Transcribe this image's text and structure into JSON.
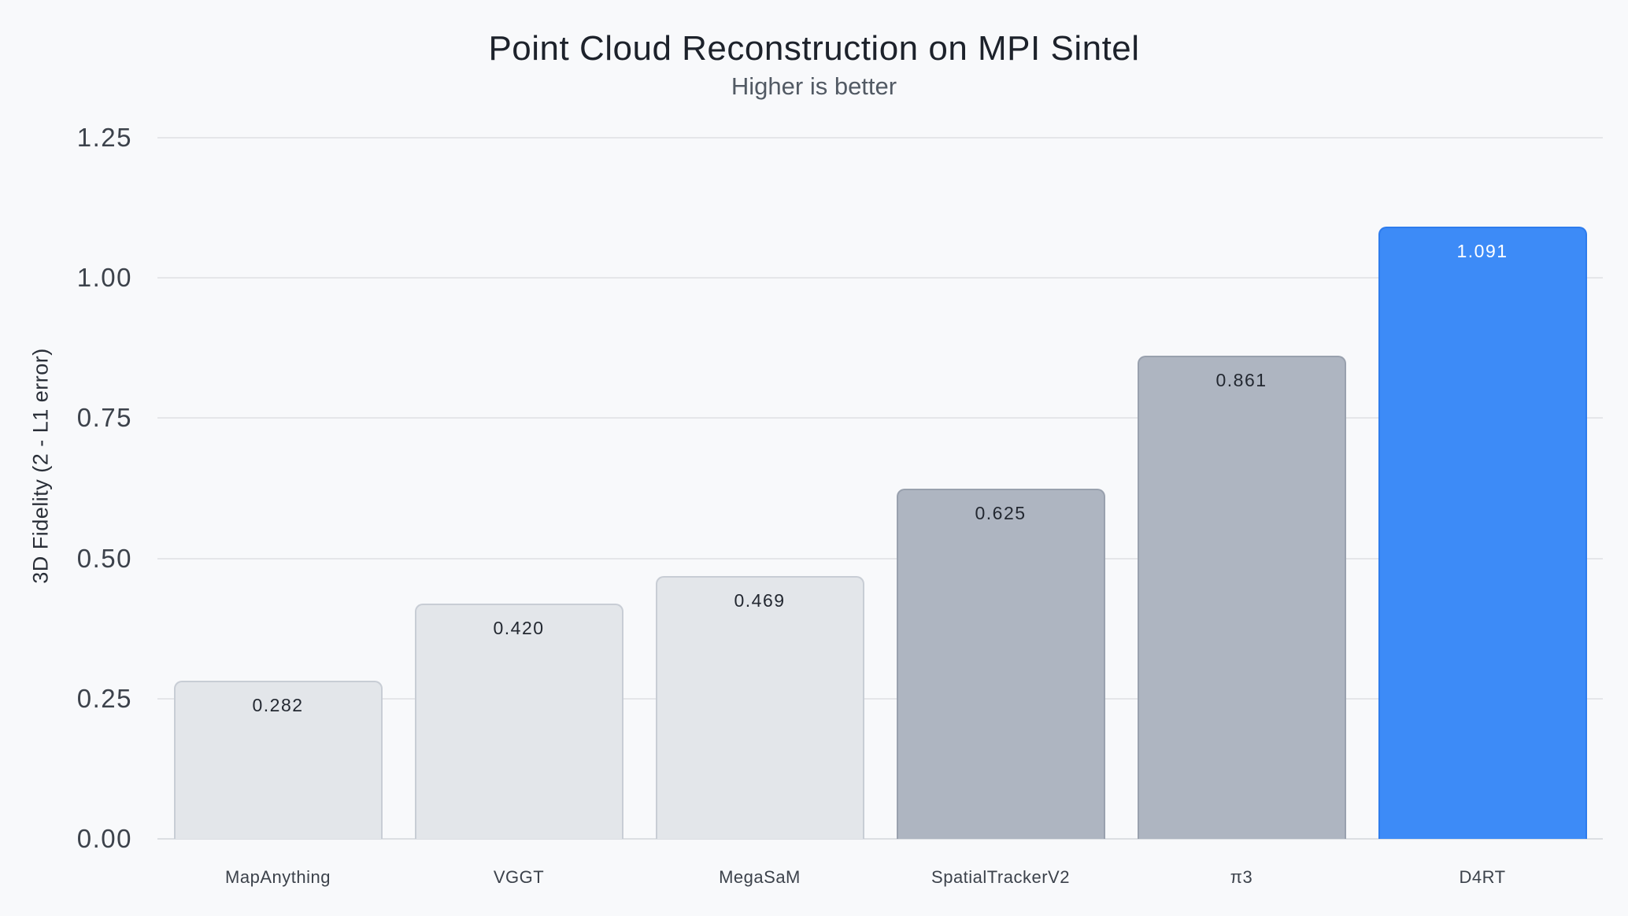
{
  "chart_data": {
    "type": "bar",
    "title": "Point Cloud Reconstruction on MPI Sintel",
    "subtitle": "Higher is better",
    "xlabel": "",
    "ylabel": "3D Fidelity (2 - L1 error)",
    "categories": [
      "MapAnything",
      "VGGT",
      "MegaSaM",
      "SpatialTrackerV2",
      "π3",
      "D4RT"
    ],
    "values": [
      0.282,
      0.42,
      0.469,
      0.625,
      0.861,
      1.091
    ],
    "value_labels": [
      "0.282",
      "0.420",
      "0.469",
      "0.625",
      "0.861",
      "1.091"
    ],
    "bar_styles": [
      "light",
      "light",
      "light",
      "medium",
      "medium",
      "accent"
    ],
    "yticks": [
      {
        "label": "1.25",
        "value": 1.25
      },
      {
        "label": "1.00",
        "value": 1.0
      },
      {
        "label": "0.75",
        "value": 0.75
      },
      {
        "label": "0.50",
        "value": 0.5
      },
      {
        "label": "0.25",
        "value": 0.25
      },
      {
        "label": "0.00",
        "value": 0.0
      }
    ],
    "ylim": [
      0,
      1.25
    ],
    "grid": true,
    "legend": false,
    "colors": {
      "background": "#f8f9fb",
      "gridline": "#e5e6e9",
      "baseline": "#dcdfe3",
      "bar_light_fill": "#e3e6ea",
      "bar_light_border": "#c8cdd5",
      "bar_medium_fill": "#aeb5c1",
      "bar_medium_border": "#99a1ae",
      "bar_accent_fill": "#3d8bf7",
      "bar_accent_border": "#2e7ced",
      "title_text": "#1d222b",
      "subtitle_text": "#525a64",
      "axis_text": "#3c424b",
      "value_text_dark": "#232831",
      "value_text_light": "#ffffff"
    }
  }
}
